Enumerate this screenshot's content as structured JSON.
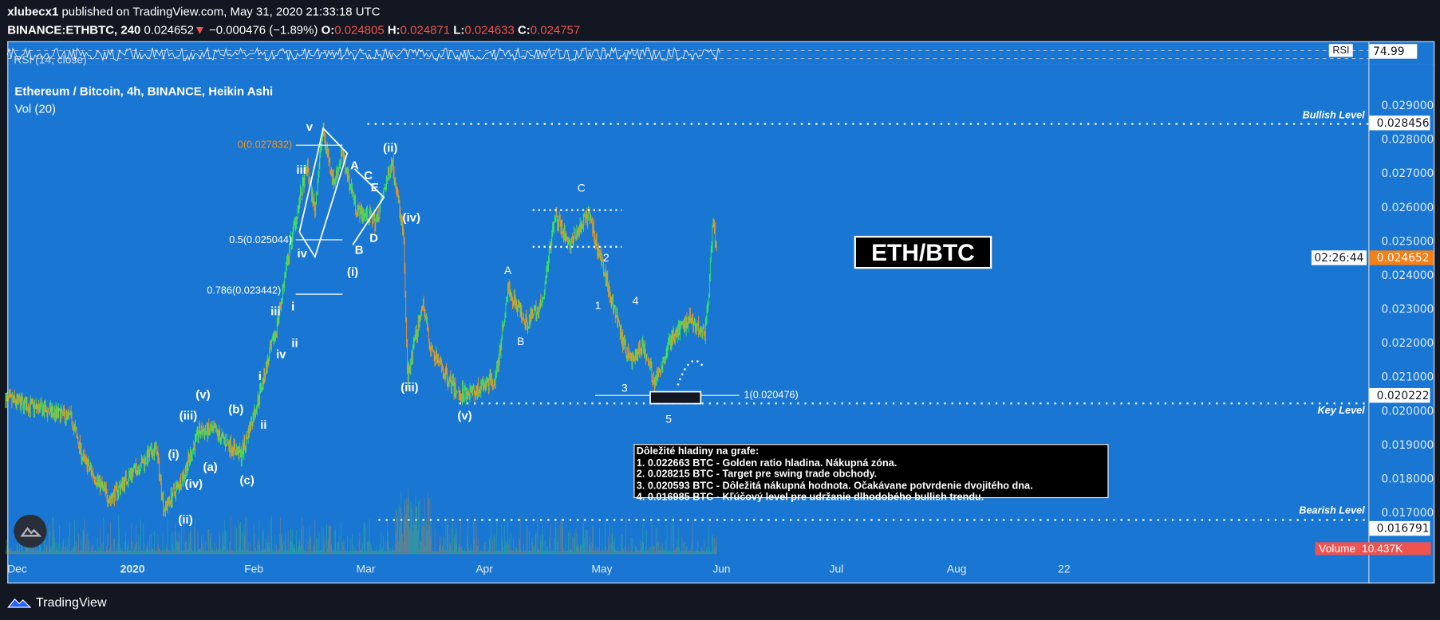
{
  "header": {
    "publisher": "xlubecx1",
    "published_text": "published on TradingView.com, May 31, 2020 21:33:18 UTC",
    "symbol": "BINANCE:ETHBTC, 240",
    "last": "0.024652",
    "change": "−0.000476 (−1.89%)",
    "o_label": "O:",
    "o": "0.024805",
    "h_label": "H:",
    "h": "0.024871",
    "l_label": "L:",
    "l": "0.024633",
    "c_label": "C:",
    "c": "0.024757"
  },
  "rsi": {
    "title": "RSI (14, close)",
    "axis_label": "RSI",
    "value": "74.99"
  },
  "legend": {
    "title": "Ethereum / Bitcoin, 4h, BINANCE, Heikin Ashi",
    "volume": "Vol (20)"
  },
  "levels": {
    "bullish": "Bullish Level",
    "bullish_value": "0.028456",
    "key": "Key Level",
    "key_value": "0.020222",
    "bearish": "Bearish Level",
    "bearish_value": "0.016791"
  },
  "last_price_label": "0.024652",
  "countdown": "02:26:44",
  "volume_label": "Volume",
  "volume_value": "10.437K",
  "pair_box": "ETH/BTC",
  "notes": {
    "title": "Dôležité hladiny na grafe:",
    "lines": [
      "1. 0.022663 BTC - Golden ratio hladina. Nákupná zóna.",
      "2. 0.028215 BTC - Target pre swing trade obchody.",
      "3. 0.020593 BTC - Dôležitá nákupná hodnota. Očakávane potvrdenie dvojitého dna.",
      "4. 0.016985 BTC - Kľúčový level pre udržanie dlhodobého bullish trendu."
    ]
  },
  "fib": [
    "0(0.027832)",
    "0.5(0.025044)",
    "0.786(0.023442)",
    "1(0.020476)"
  ],
  "annotations": [
    "v",
    "iii",
    "A",
    "C",
    "E",
    "(ii)",
    "(iv)",
    "B",
    "D",
    "iv",
    "(i)",
    "iii",
    "i",
    "iv",
    "ii",
    "i",
    "(iii)",
    "(v)",
    "ii",
    "(v)",
    "(iii)",
    "(b)",
    "(i)",
    "(a)",
    "(iv)",
    "(c)",
    "(ii)",
    "A",
    "B",
    "C",
    "2",
    "1",
    "4",
    "3",
    "5"
  ],
  "footer": {
    "brand": "TradingView"
  },
  "colors": {
    "background": "#1976d2",
    "up": "#39e75f",
    "down": "#f7931a",
    "frame": "#131722",
    "volume_badge": "#ef5350"
  },
  "chart_data": {
    "type": "candlestick",
    "style": "Heikin Ashi",
    "timeframe": "4h",
    "price_ticks": [
      "0.029000",
      "0.028000",
      "0.027000",
      "0.026000",
      "0.025000",
      "0.024000",
      "0.023000",
      "0.022000",
      "0.021000",
      "0.020000",
      "0.019000",
      "0.018000",
      "0.017000"
    ],
    "x_ticks": [
      "Dec",
      "2020",
      "Feb",
      "Mar",
      "Apr",
      "May",
      "Jun",
      "Jul",
      "Aug",
      "22"
    ],
    "ylim": [
      0.0165,
      0.0295
    ],
    "path": [
      [
        "2019-11-29",
        0.02035
      ],
      [
        "2019-12-16",
        0.0198
      ],
      [
        "2019-12-19",
        0.0186
      ],
      [
        "2019-12-26",
        0.0174
      ],
      [
        "2019-12-31",
        0.0181
      ],
      [
        "2020-01-07",
        0.0189
      ],
      [
        "2020-01-09",
        0.0171
      ],
      [
        "2020-01-14",
        0.0181
      ],
      [
        "2020-01-18",
        0.0194
      ],
      [
        "2020-01-22",
        0.0194
      ],
      [
        "2020-01-29",
        0.0187
      ],
      [
        "2020-02-02",
        0.0202
      ],
      [
        "2020-02-07",
        0.0224
      ],
      [
        "2020-02-11",
        0.0251
      ],
      [
        "2020-02-15",
        0.0272
      ],
      [
        "2020-02-17",
        0.0259
      ],
      [
        "2020-02-19",
        0.0283
      ],
      [
        "2020-02-22",
        0.0267
      ],
      [
        "2020-02-24",
        0.0276
      ],
      [
        "2020-02-28",
        0.0259
      ],
      [
        "2020-03-04",
        0.0256
      ],
      [
        "2020-03-08",
        0.0274
      ],
      [
        "2020-03-11",
        0.0251
      ],
      [
        "2020-03-12",
        0.021
      ],
      [
        "2020-03-16",
        0.0232
      ],
      [
        "2020-03-18",
        0.0218
      ],
      [
        "2020-03-25",
        0.0205
      ],
      [
        "2020-03-30",
        0.0206
      ],
      [
        "2020-04-04",
        0.021
      ],
      [
        "2020-04-07",
        0.0236
      ],
      [
        "2020-04-12",
        0.0226
      ],
      [
        "2020-04-16",
        0.0232
      ],
      [
        "2020-04-19",
        0.0258
      ],
      [
        "2020-04-23",
        0.0249
      ],
      [
        "2020-04-28",
        0.0258
      ],
      [
        "2020-04-30",
        0.0249
      ],
      [
        "2020-05-02",
        0.0241
      ],
      [
        "2020-05-07",
        0.0219
      ],
      [
        "2020-05-09",
        0.0215
      ],
      [
        "2020-05-12",
        0.0219
      ],
      [
        "2020-05-15",
        0.0208
      ],
      [
        "2020-05-19",
        0.0221
      ],
      [
        "2020-05-24",
        0.0227
      ],
      [
        "2020-05-28",
        0.0223
      ],
      [
        "2020-05-29",
        0.0235
      ],
      [
        "2020-05-30",
        0.0256
      ],
      [
        "2020-05-31",
        0.0247
      ]
    ]
  }
}
